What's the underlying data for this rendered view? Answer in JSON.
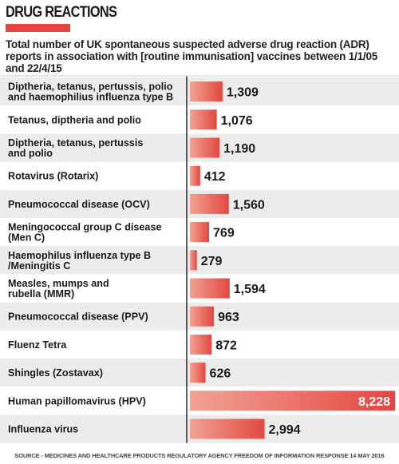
{
  "header": {
    "title": "DRUG REACTIONS",
    "subtitle": "Total number of UK spontaneous suspected adverse drug reaction (ADR) reports in association with [routine immunisation] vaccines between 1/1/05 and 22/4/15",
    "source": "SOURCE - MEDICINES AND HEALTHCARE PRODUCTS REGULATORY AGENCY FREEDOM OF INFORMATION RESPONSE 14 MAY 2016"
  },
  "colors": {
    "accent": "#e8433f",
    "bar_light": "#f2a293",
    "bar_dark": "#e2473f",
    "row_shade": "#ececec"
  },
  "chart_data": {
    "type": "bar",
    "orientation": "horizontal",
    "categories": [
      "Diptheria, tetanus, pertussis, polio and haemophilius influenza type B",
      "Tetanus, diptheria and polio",
      "Diptheria, tetanus, pertussis and polio",
      "Rotavirus (Rotarix)",
      "Pneumococcal disease (OCV)",
      "Meningococcal group C disease (Men C)",
      "Haemophilus influenza type B /Meningitis C",
      "Measles, mumps and rubella (MMR)",
      "Pneumococcal disease (PPV)",
      "Fluenz Tetra",
      "Shingles (Zostavax)",
      "Human papillomavirus (HPV)",
      "Influenza virus"
    ],
    "category_lines": [
      [
        "Diptheria, tetanus, pertussis, polio",
        "and haemophilius influenza type B"
      ],
      [
        "Tetanus, diptheria and polio"
      ],
      [
        "Diptheria, tetanus, pertussis",
        "and polio"
      ],
      [
        "Rotavirus (Rotarix)"
      ],
      [
        "Pneumococcal disease (OCV)"
      ],
      [
        "Meningococcal group C disease",
        "(Men C)"
      ],
      [
        "Haemophilus influenza type B",
        "/Meningitis C"
      ],
      [
        "Measles, mumps and",
        "rubella (MMR)"
      ],
      [
        "Pneumococcal disease (PPV)"
      ],
      [
        "Fluenz Tetra"
      ],
      [
        "Shingles (Zostavax)"
      ],
      [
        "Human papillomavirus (HPV)"
      ],
      [
        "Influenza virus"
      ]
    ],
    "values": [
      1309,
      1076,
      1190,
      412,
      1560,
      769,
      279,
      1594,
      963,
      872,
      626,
      8228,
      2994
    ],
    "value_labels": [
      "1,309",
      "1,076",
      "1,190",
      "412",
      "1,560",
      "769",
      "279",
      "1,594",
      "963",
      "872",
      "626",
      "8,228",
      "2,994"
    ],
    "xlim": [
      0,
      8228
    ],
    "grid": false,
    "legend": "none"
  }
}
